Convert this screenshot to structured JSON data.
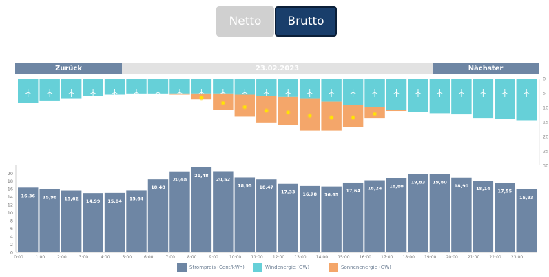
{
  "toggle": {
    "netto_label": "Netto",
    "brutto_label": "Brutto",
    "active": "brutto"
  },
  "nav": {
    "back_label": "Zurück",
    "next_label": "Nächster",
    "date": "23.02.2023"
  },
  "colors": {
    "price": "#6e86a4",
    "wind": "#66d0d8",
    "solar": "#f4a66a",
    "active_button": "#193e6b",
    "inactive_button": "#d0d0d0"
  },
  "legend": [
    {
      "label": "Strompreis (Cent/kWh)",
      "color": "#6e86a4"
    },
    {
      "label": "Windenergie (GW)",
      "color": "#66d0d8"
    },
    {
      "label": "Sonnenenergie (GW)",
      "color": "#f4a66a"
    }
  ],
  "chart_data": [
    {
      "type": "bar",
      "title": "",
      "ylabel": "",
      "ylim": [
        30,
        0
      ],
      "y_ticks": [
        "0",
        "5",
        "10",
        "15",
        "20",
        "25",
        "30"
      ],
      "hours": [
        0,
        1,
        2,
        3,
        4,
        5,
        6,
        7,
        8,
        9,
        10,
        11,
        12,
        13,
        14,
        15,
        16,
        17,
        18,
        19,
        20,
        21,
        22,
        23
      ],
      "series": [
        {
          "values": [
            8.4,
            7.6,
            6.8,
            6.0,
            5.6,
            5.2,
            5.2,
            5.2,
            5.2,
            5.2,
            5.6,
            6.0,
            6.4,
            6.8,
            8.0,
            9.2,
            10.0,
            10.8,
            11.6,
            12.0,
            12.4,
            13.6,
            14.0,
            14.4
          ]
        },
        {
          "values": [
            0,
            0,
            0,
            0,
            0,
            0,
            0,
            0.4,
            2.0,
            5.6,
            7.6,
            9.2,
            9.6,
            11.2,
            10.0,
            7.6,
            3.6,
            0.4,
            0,
            0,
            0,
            0,
            0,
            0
          ]
        }
      ]
    },
    {
      "type": "bar",
      "title": "",
      "ylabel": "",
      "ylim": [
        0,
        22
      ],
      "y_ticks": [
        "0",
        "2",
        "4",
        "6",
        "8",
        "10",
        "12",
        "14",
        "16",
        "18",
        "20"
      ],
      "categories": [
        "0:00",
        "1:00",
        "2:00",
        "3:00",
        "4:00",
        "5:00",
        "6:00",
        "7:00",
        "8:00",
        "9:00",
        "10:00",
        "11:00",
        "12:00",
        "13:00",
        "14:00",
        "15:00",
        "16:00",
        "17:00",
        "18:00",
        "19:00",
        "20:00",
        "21:00",
        "22:00",
        "23:00"
      ],
      "series": [
        {
          "values": [
            16.36,
            15.98,
            15.62,
            14.99,
            15.04,
            15.64,
            18.48,
            20.48,
            21.48,
            20.52,
            18.95,
            18.47,
            17.33,
            16.78,
            16.65,
            17.64,
            18.24,
            18.8,
            19.83,
            19.8,
            18.9,
            18.14,
            17.55,
            15.93
          ]
        }
      ],
      "value_labels": [
        "16,36",
        "15,98",
        "15,62",
        "14,99",
        "15,04",
        "15,64",
        "18,48",
        "20,48",
        "21,48",
        "20,52",
        "18,95",
        "18,47",
        "17,33",
        "16,78",
        "16,65",
        "17,64",
        "18,24",
        "18,80",
        "19,83",
        "19,80",
        "18,90",
        "18,14",
        "17,55",
        "15,93"
      ]
    }
  ]
}
